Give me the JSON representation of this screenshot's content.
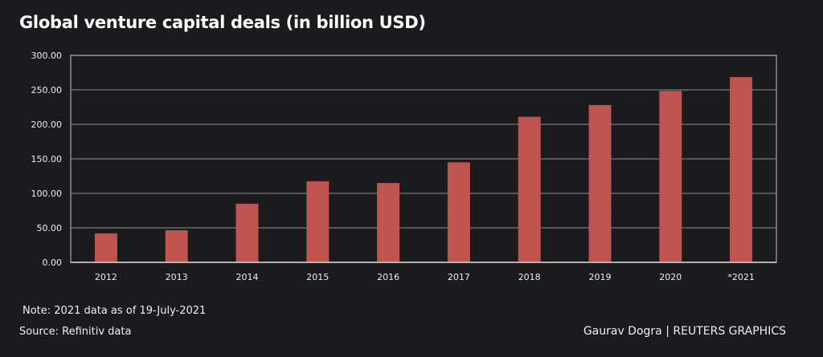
{
  "chart_data": {
    "type": "bar",
    "title": "Global venture capital deals (in billion USD)",
    "categories": [
      "2012",
      "2013",
      "2014",
      "2015",
      "2016",
      "2017",
      "2018",
      "2019",
      "2020",
      "*2021"
    ],
    "values": [
      42,
      46.5,
      85,
      117.5,
      115,
      145,
      211,
      228,
      248.5,
      268.5
    ],
    "xlabel": "",
    "ylabel": "",
    "ylim": [
      0,
      300
    ],
    "yticks": [
      "0.00",
      "50.00",
      "100.00",
      "150.00",
      "200.00",
      "250.00",
      "300.00"
    ],
    "grid": true,
    "bar_color": "#bf534f",
    "background": "#1b1a1c"
  },
  "footer": {
    "note": "Note: 2021 data as of 19-July-2021",
    "source": "Source: Refinitiv data",
    "credit": "Gaurav Dogra | REUTERS GRAPHICS"
  }
}
